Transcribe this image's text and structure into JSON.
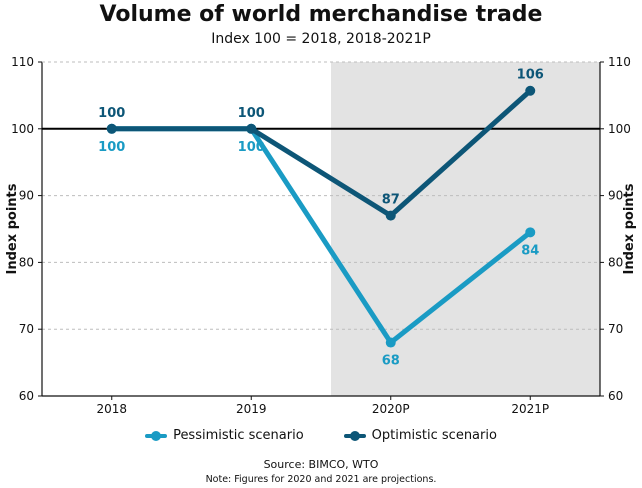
{
  "chart_data": {
    "type": "line",
    "title": "Volume of world merchandise trade",
    "subtitle": "Index 100 = 2018, 2018-2021P",
    "ylabel": "Index points",
    "ylabel_right": "Index points",
    "categories": [
      "2018",
      "2019",
      "2020P",
      "2021P"
    ],
    "ylim": [
      60,
      110
    ],
    "yticks": [
      60,
      70,
      80,
      90,
      100,
      110
    ],
    "reference_line": 100,
    "shaded_categories": [
      "2020P",
      "2021P"
    ],
    "series": [
      {
        "name": "Pessimistic scenario",
        "values": [
          100,
          100,
          68,
          84.5
        ],
        "labels": [
          "100",
          "100",
          "68",
          "84"
        ],
        "color": "#1a9bc4"
      },
      {
        "name": "Optimistic scenario",
        "values": [
          100,
          100,
          87,
          105.7
        ],
        "labels": [
          "100",
          "100",
          "87",
          "106"
        ],
        "color": "#0d5677"
      }
    ],
    "source": "Source: BIMCO, WTO",
    "note": "Note: Figures for 2020 and 2021 are projections.",
    "legend_position": "bottom"
  }
}
